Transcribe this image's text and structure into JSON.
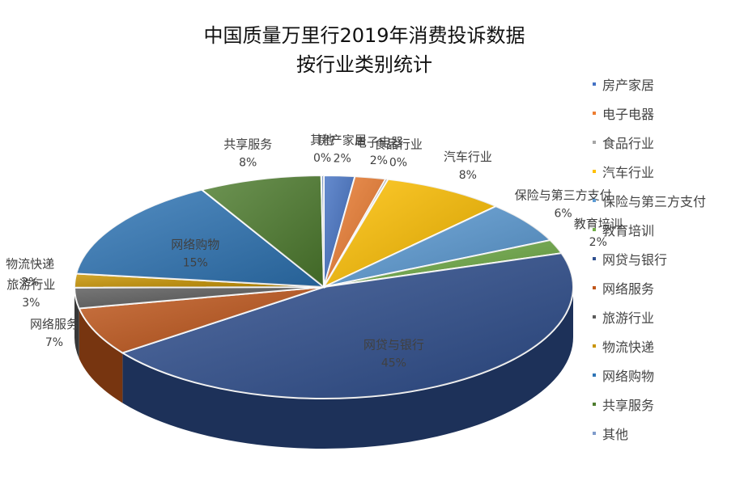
{
  "chart_data": {
    "type": "pie",
    "title_line1": "中国质量万里行2019年消费投诉数据",
    "title_line2": "按行业类别统计",
    "labels": [
      "房产家居",
      "电子电器",
      "食品行业",
      "汽车行业",
      "保险与第三方支付",
      "教育培训",
      "网贷与银行",
      "网络服务",
      "旅游行业",
      "物流快递",
      "网络购物",
      "共享服务",
      "其他"
    ],
    "values": [
      2,
      2,
      0,
      8,
      6,
      2,
      45,
      7,
      3,
      2,
      15,
      8,
      0
    ],
    "pct_labels": [
      "2%",
      "2%",
      "0%",
      "8%",
      "6%",
      "2%",
      "45%",
      "7%",
      "3%",
      "2%",
      "15%",
      "8%",
      "0%"
    ],
    "colors": [
      "#4472C4",
      "#ED7D31",
      "#A5A5A5",
      "#FFC000",
      "#5B9BD5",
      "#70AD47",
      "#2F4F8F",
      "#C0561A",
      "#5A5A5A",
      "#C99400",
      "#2E75B6",
      "#4E7D2E",
      "#7F9BCB"
    ],
    "legend_position": "right"
  }
}
